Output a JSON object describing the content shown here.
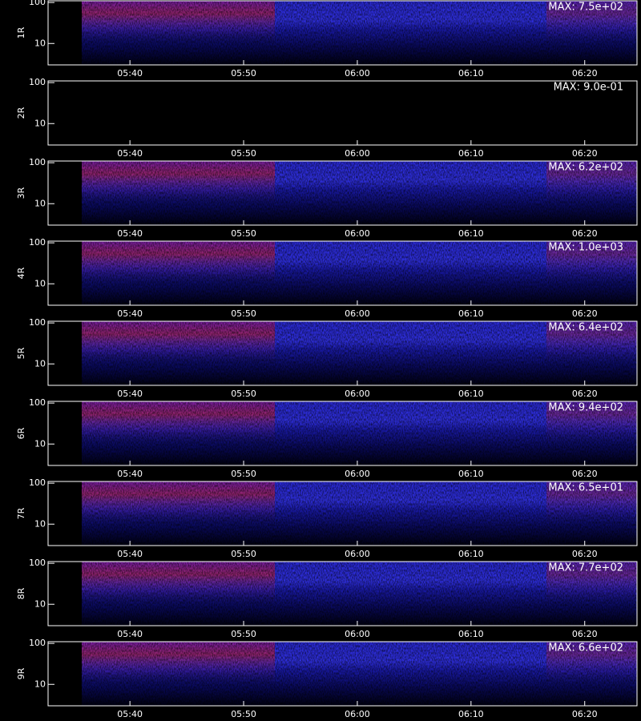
{
  "chart_data": [
    {
      "type": "spectrogram",
      "ylabel": "1R",
      "annotation": "MAX: 7.5e+02",
      "show_data": true,
      "log_y": true,
      "ylim": [
        3,
        110
      ],
      "yticks": [
        10,
        100
      ],
      "xlim": [
        332.8,
        384.6
      ],
      "xticks": [
        {
          "value": 340,
          "label": "05:40"
        },
        {
          "value": 350,
          "label": "05:50"
        },
        {
          "value": 360,
          "label": "06:00"
        },
        {
          "value": 370,
          "label": "06:10"
        },
        {
          "value": 380,
          "label": "06:20"
        }
      ]
    },
    {
      "type": "spectrogram",
      "ylabel": "2R",
      "annotation": "MAX: 9.0e-01",
      "show_data": false,
      "log_y": true,
      "ylim": [
        3,
        110
      ],
      "yticks": [
        10,
        100
      ],
      "xlim": [
        332.8,
        384.6
      ],
      "xticks": [
        {
          "value": 340,
          "label": "05:40"
        },
        {
          "value": 350,
          "label": "05:50"
        },
        {
          "value": 360,
          "label": "06:00"
        },
        {
          "value": 370,
          "label": "06:10"
        },
        {
          "value": 380,
          "label": "06:20"
        }
      ]
    },
    {
      "type": "spectrogram",
      "ylabel": "3R",
      "annotation": "MAX: 6.2e+02",
      "show_data": true,
      "log_y": true,
      "ylim": [
        3,
        110
      ],
      "yticks": [
        10,
        100
      ],
      "xlim": [
        332.8,
        384.6
      ],
      "xticks": [
        {
          "value": 340,
          "label": "05:40"
        },
        {
          "value": 350,
          "label": "05:50"
        },
        {
          "value": 360,
          "label": "06:00"
        },
        {
          "value": 370,
          "label": "06:10"
        },
        {
          "value": 380,
          "label": "06:20"
        }
      ]
    },
    {
      "type": "spectrogram",
      "ylabel": "4R",
      "annotation": "MAX: 1.0e+03",
      "show_data": true,
      "log_y": true,
      "ylim": [
        3,
        110
      ],
      "yticks": [
        10,
        100
      ],
      "xlim": [
        332.8,
        384.6
      ],
      "xticks": [
        {
          "value": 340,
          "label": "05:40"
        },
        {
          "value": 350,
          "label": "05:50"
        },
        {
          "value": 360,
          "label": "06:00"
        },
        {
          "value": 370,
          "label": "06:10"
        },
        {
          "value": 380,
          "label": "06:20"
        }
      ]
    },
    {
      "type": "spectrogram",
      "ylabel": "5R",
      "annotation": "MAX: 6.4e+02",
      "show_data": true,
      "log_y": true,
      "ylim": [
        3,
        110
      ],
      "yticks": [
        10,
        100
      ],
      "xlim": [
        332.8,
        384.6
      ],
      "xticks": [
        {
          "value": 340,
          "label": "05:40"
        },
        {
          "value": 350,
          "label": "05:50"
        },
        {
          "value": 360,
          "label": "06:00"
        },
        {
          "value": 370,
          "label": "06:10"
        },
        {
          "value": 380,
          "label": "06:20"
        }
      ]
    },
    {
      "type": "spectrogram",
      "ylabel": "6R",
      "annotation": "MAX: 9.4e+02",
      "show_data": true,
      "log_y": true,
      "ylim": [
        3,
        110
      ],
      "yticks": [
        10,
        100
      ],
      "xlim": [
        332.8,
        384.6
      ],
      "xticks": [
        {
          "value": 340,
          "label": "05:40"
        },
        {
          "value": 350,
          "label": "05:50"
        },
        {
          "value": 360,
          "label": "06:00"
        },
        {
          "value": 370,
          "label": "06:10"
        },
        {
          "value": 380,
          "label": "06:20"
        }
      ]
    },
    {
      "type": "spectrogram",
      "ylabel": "7R",
      "annotation": "MAX: 6.5e+01",
      "show_data": true,
      "log_y": true,
      "ylim": [
        3,
        110
      ],
      "yticks": [
        10,
        100
      ],
      "xlim": [
        332.8,
        384.6
      ],
      "xticks": [
        {
          "value": 340,
          "label": "05:40"
        },
        {
          "value": 350,
          "label": "05:50"
        },
        {
          "value": 360,
          "label": "06:00"
        },
        {
          "value": 370,
          "label": "06:10"
        },
        {
          "value": 380,
          "label": "06:20"
        }
      ]
    },
    {
      "type": "spectrogram",
      "ylabel": "8R",
      "annotation": "MAX: 7.7e+02",
      "show_data": true,
      "log_y": true,
      "ylim": [
        3,
        110
      ],
      "yticks": [
        10,
        100
      ],
      "xlim": [
        332.8,
        384.6
      ],
      "xticks": [
        {
          "value": 340,
          "label": "05:40"
        },
        {
          "value": 350,
          "label": "05:50"
        },
        {
          "value": 360,
          "label": "06:00"
        },
        {
          "value": 370,
          "label": "06:10"
        },
        {
          "value": 380,
          "label": "06:20"
        }
      ]
    },
    {
      "type": "spectrogram",
      "ylabel": "9R",
      "annotation": "MAX: 6.6e+02",
      "show_data": true,
      "log_y": true,
      "ylim": [
        3,
        110
      ],
      "yticks": [
        10,
        100
      ],
      "xlim": [
        332.8,
        384.6
      ],
      "xticks": [
        {
          "value": 340,
          "label": "05:40"
        },
        {
          "value": 350,
          "label": "05:50"
        },
        {
          "value": 360,
          "label": "06:00"
        },
        {
          "value": 370,
          "label": "06:10"
        },
        {
          "value": 380,
          "label": "06:20"
        }
      ]
    }
  ]
}
